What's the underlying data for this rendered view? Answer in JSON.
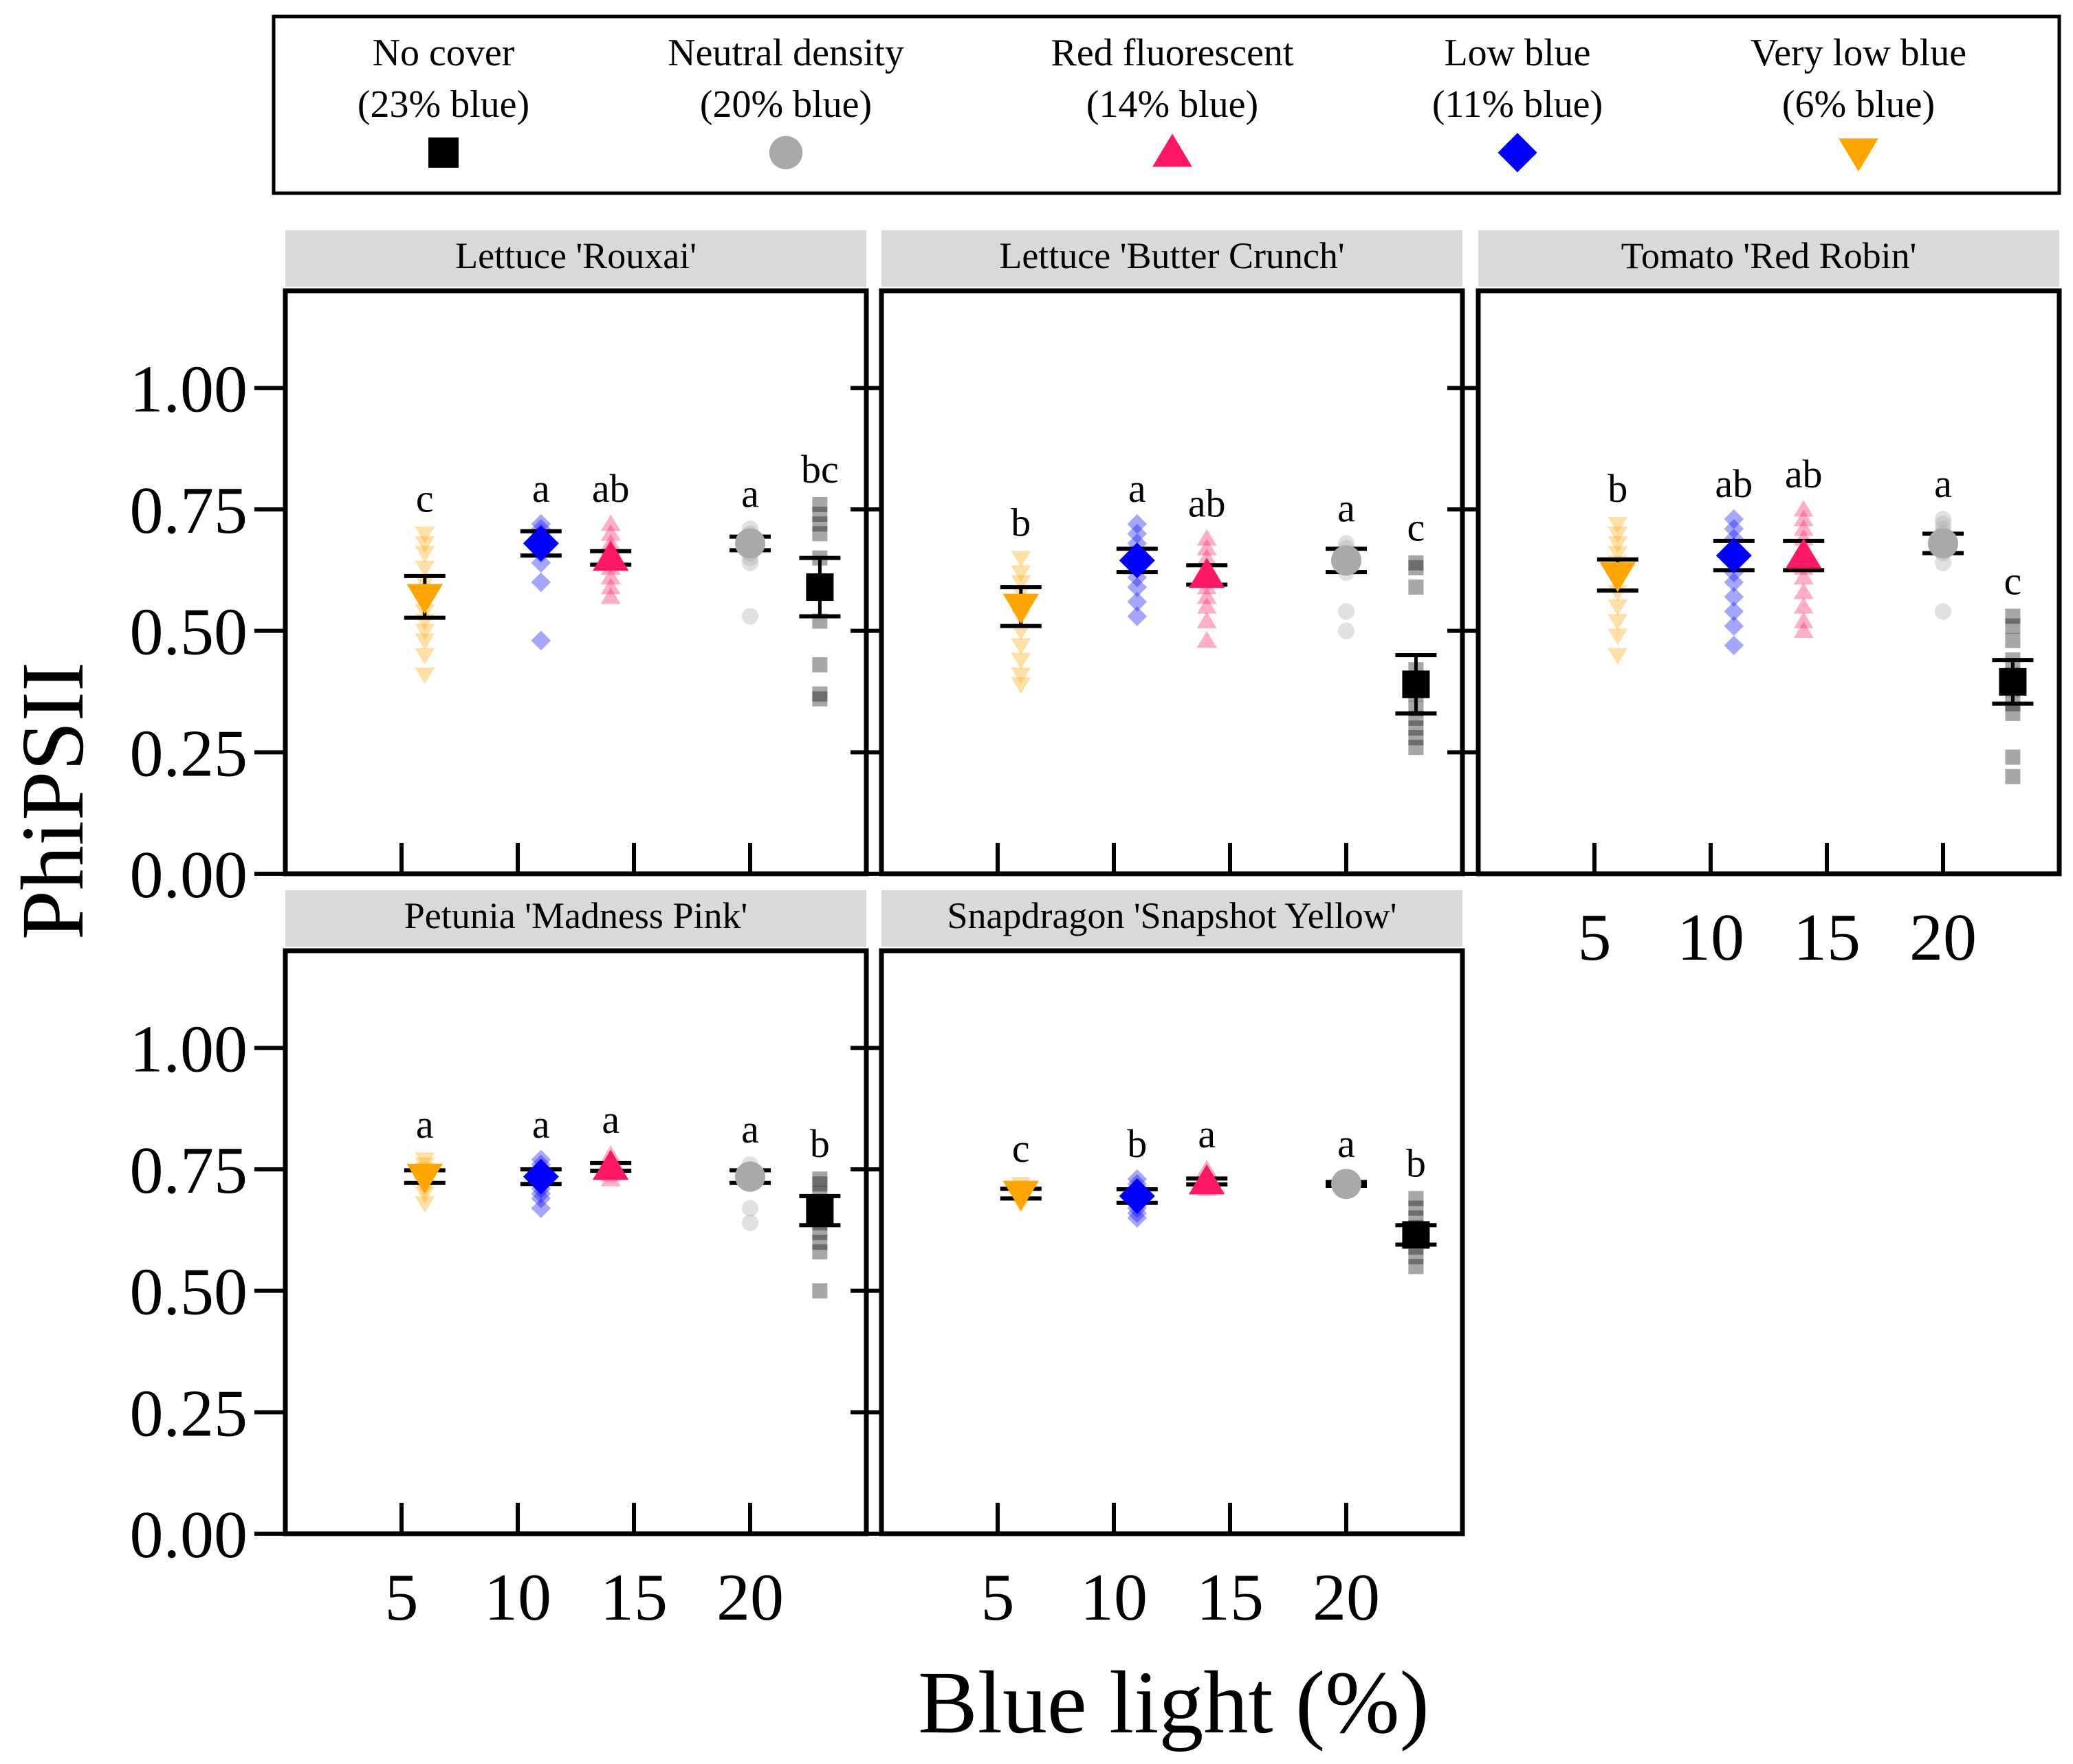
{
  "chart_data": {
    "type": "scatter",
    "ylabel": "PhiPSII",
    "xlabel": "Blue light (%)",
    "xticks": [
      "5",
      "10",
      "15",
      "20"
    ],
    "yticks": [
      "0.00",
      "0.25",
      "0.50",
      "0.75",
      "1.00"
    ],
    "xlim": [
      0,
      25
    ],
    "ylim": [
      0,
      1.2
    ],
    "legend": [
      {
        "key": "no_cover",
        "line1": "No cover",
        "line2": "(23% blue)",
        "color": "#000000",
        "shape": "square"
      },
      {
        "key": "neutral",
        "line1": "Neutral density",
        "line2": "(20% blue)",
        "color": "#a9a9a9",
        "shape": "circle"
      },
      {
        "key": "red",
        "line1": "Red fluorescent",
        "line2": "(14% blue)",
        "color": "#ff1767",
        "shape": "triangle-up"
      },
      {
        "key": "low_blue",
        "line1": "Low blue",
        "line2": "(11% blue)",
        "color": "#0000ff",
        "shape": "diamond"
      },
      {
        "key": "vlow_blue",
        "line1": "Very low blue",
        "line2": "(6% blue)",
        "color": "#ffa500",
        "shape": "triangle-down"
      }
    ],
    "panels": [
      {
        "title": "Lettuce 'Rouxai'",
        "groups": [
          {
            "key": "vlow_blue",
            "x": 6,
            "mean": 0.57,
            "se": 0.043,
            "label": "c",
            "points": [
              0.7,
              0.68,
              0.66,
              0.63,
              0.6,
              0.58,
              0.56,
              0.54,
              0.52,
              0.5,
              0.48,
              0.45,
              0.41
            ]
          },
          {
            "key": "low_blue",
            "x": 11,
            "mean": 0.68,
            "se": 0.025,
            "label": "a",
            "points": [
              0.72,
              0.71,
              0.7,
              0.69,
              0.68,
              0.67,
              0.66,
              0.64,
              0.6,
              0.48
            ]
          },
          {
            "key": "red",
            "x": 14,
            "mean": 0.65,
            "se": 0.014,
            "label": "ab",
            "points": [
              0.72,
              0.7,
              0.68,
              0.67,
              0.66,
              0.65,
              0.63,
              0.61,
              0.59,
              0.57
            ]
          },
          {
            "key": "neutral",
            "x": 20,
            "mean": 0.68,
            "se": 0.014,
            "label": "a",
            "points": [
              0.71,
              0.7,
              0.69,
              0.68,
              0.67,
              0.66,
              0.65,
              0.64,
              0.53
            ]
          },
          {
            "key": "no_cover",
            "x": 23,
            "mean": 0.59,
            "se": 0.06,
            "label": "bc",
            "points": [
              0.76,
              0.74,
              0.72,
              0.7,
              0.65,
              0.59,
              0.52,
              0.43,
              0.37,
              0.36
            ]
          }
        ]
      },
      {
        "title": "Lettuce 'Butter Crunch'",
        "groups": [
          {
            "key": "vlow_blue",
            "x": 6,
            "mean": 0.55,
            "se": 0.04,
            "label": "b",
            "points": [
              0.65,
              0.62,
              0.6,
              0.58,
              0.55,
              0.53,
              0.5,
              0.47,
              0.44,
              0.41,
              0.39
            ]
          },
          {
            "key": "low_blue",
            "x": 11,
            "mean": 0.645,
            "se": 0.024,
            "label": "a",
            "points": [
              0.72,
              0.7,
              0.68,
              0.66,
              0.65,
              0.63,
              0.61,
              0.59,
              0.56,
              0.53
            ]
          },
          {
            "key": "red",
            "x": 14,
            "mean": 0.615,
            "se": 0.02,
            "label": "ab",
            "points": [
              0.69,
              0.67,
              0.65,
              0.63,
              0.61,
              0.59,
              0.57,
              0.55,
              0.52,
              0.48
            ]
          },
          {
            "key": "neutral",
            "x": 20,
            "mean": 0.645,
            "se": 0.024,
            "label": "a",
            "points": [
              0.68,
              0.67,
              0.66,
              0.65,
              0.64,
              0.63,
              0.62,
              0.54,
              0.5
            ]
          },
          {
            "key": "no_cover",
            "x": 23,
            "mean": 0.39,
            "se": 0.06,
            "label": "c",
            "points": [
              0.64,
              0.63,
              0.59,
              0.42,
              0.37,
              0.34,
              0.32,
              0.3,
              0.28,
              0.26
            ]
          }
        ]
      },
      {
        "title": "Tomato 'Red Robin'",
        "groups": [
          {
            "key": "vlow_blue",
            "x": 6,
            "mean": 0.615,
            "se": 0.032,
            "label": "b",
            "points": [
              0.72,
              0.7,
              0.68,
              0.66,
              0.64,
              0.62,
              0.6,
              0.58,
              0.55,
              0.52,
              0.49,
              0.45
            ]
          },
          {
            "key": "low_blue",
            "x": 11,
            "mean": 0.655,
            "se": 0.03,
            "label": "ab",
            "points": [
              0.73,
              0.71,
              0.69,
              0.67,
              0.66,
              0.64,
              0.62,
              0.6,
              0.57,
              0.54,
              0.51,
              0.47
            ]
          },
          {
            "key": "red",
            "x": 14,
            "mean": 0.655,
            "se": 0.03,
            "label": "ab",
            "points": [
              0.75,
              0.73,
              0.71,
              0.69,
              0.67,
              0.65,
              0.63,
              0.61,
              0.58,
              0.55,
              0.52,
              0.5
            ]
          },
          {
            "key": "neutral",
            "x": 20,
            "mean": 0.68,
            "se": 0.02,
            "label": "a",
            "points": [
              0.73,
              0.72,
              0.71,
              0.7,
              0.69,
              0.68,
              0.67,
              0.66,
              0.64,
              0.54
            ]
          },
          {
            "key": "no_cover",
            "x": 23,
            "mean": 0.395,
            "se": 0.045,
            "label": "c",
            "points": [
              0.53,
              0.51,
              0.48,
              0.44,
              0.41,
              0.38,
              0.35,
              0.33,
              0.24,
              0.2
            ]
          }
        ]
      },
      {
        "title": "Petunia 'Madness Pink'",
        "groups": [
          {
            "key": "vlow_blue",
            "x": 6,
            "mean": 0.735,
            "se": 0.013,
            "label": "a",
            "points": [
              0.77,
              0.76,
              0.75,
              0.74,
              0.73,
              0.72,
              0.71,
              0.7,
              0.68
            ]
          },
          {
            "key": "low_blue",
            "x": 11,
            "mean": 0.735,
            "se": 0.015,
            "label": "a",
            "points": [
              0.77,
              0.76,
              0.75,
              0.74,
              0.73,
              0.72,
              0.71,
              0.7,
              0.69,
              0.67
            ]
          },
          {
            "key": "red",
            "x": 14,
            "mean": 0.755,
            "se": 0.008,
            "label": "a",
            "points": [
              0.78,
              0.77,
              0.76,
              0.75,
              0.74,
              0.73
            ]
          },
          {
            "key": "neutral",
            "x": 20,
            "mean": 0.735,
            "se": 0.013,
            "label": "a",
            "points": [
              0.76,
              0.75,
              0.74,
              0.73,
              0.72,
              0.67,
              0.64
            ]
          },
          {
            "key": "no_cover",
            "x": 23,
            "mean": 0.665,
            "se": 0.03,
            "label": "b",
            "points": [
              0.73,
              0.72,
              0.7,
              0.68,
              0.66,
              0.64,
              0.62,
              0.6,
              0.58,
              0.5
            ]
          }
        ]
      },
      {
        "title": "Snapdragon 'Snapshot Yellow'",
        "groups": [
          {
            "key": "vlow_blue",
            "x": 6,
            "mean": 0.7,
            "se": 0.01,
            "label": "c",
            "points": [
              0.72,
              0.71,
              0.7,
              0.69,
              0.68
            ]
          },
          {
            "key": "low_blue",
            "x": 11,
            "mean": 0.695,
            "se": 0.014,
            "label": "b",
            "points": [
              0.73,
              0.72,
              0.71,
              0.7,
              0.69,
              0.68,
              0.67,
              0.66,
              0.65
            ]
          },
          {
            "key": "red",
            "x": 14,
            "mean": 0.725,
            "se": 0.006,
            "label": "a",
            "points": [
              0.75,
              0.74,
              0.73,
              0.72,
              0.71
            ]
          },
          {
            "key": "neutral",
            "x": 20,
            "mean": 0.72,
            "se": 0.004,
            "label": "a",
            "points": [
              0.73,
              0.72,
              0.71
            ]
          },
          {
            "key": "no_cover",
            "x": 23,
            "mean": 0.615,
            "se": 0.02,
            "label": "b",
            "points": [
              0.69,
              0.67,
              0.65,
              0.63,
              0.61,
              0.59,
              0.57,
              0.55
            ]
          }
        ]
      }
    ]
  }
}
